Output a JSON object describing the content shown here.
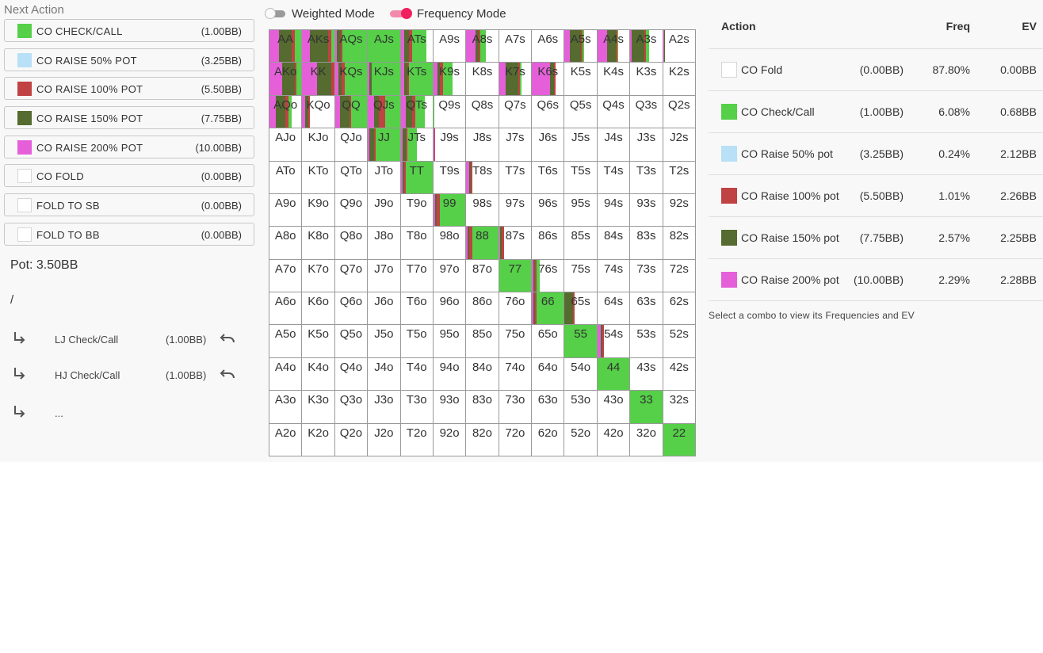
{
  "colors": {
    "check_call": "#55d048",
    "raise50": "#b8e0f6",
    "raise100": "#c04242",
    "raise150": "#556b2f",
    "raise200": "#e55fd9",
    "fold": "#ffffff",
    "toggle_on": "#f0447a",
    "toggle_off": "#9a9a9a"
  },
  "next_action": {
    "title": "Next Action",
    "buttons": [
      {
        "label": "CO CHECK/CALL",
        "amount": "(1.00BB)",
        "color": "#55d048"
      },
      {
        "label": "CO RAISE 50% POT",
        "amount": "(3.25BB)",
        "color": "#b8e0f6"
      },
      {
        "label": "CO RAISE 100% POT",
        "amount": "(5.50BB)",
        "color": "#c04242"
      },
      {
        "label": "CO RAISE 150% POT",
        "amount": "(7.75BB)",
        "color": "#556b2f"
      },
      {
        "label": "CO RAISE 200% POT",
        "amount": "(10.00BB)",
        "color": "#e55fd9"
      },
      {
        "label": "CO FOLD",
        "amount": "(0.00BB)",
        "color": "#ffffff"
      },
      {
        "label": "FOLD TO SB",
        "amount": "(0.00BB)",
        "color": "#ffffff"
      },
      {
        "label": "FOLD TO BB",
        "amount": "(0.00BB)",
        "color": "#ffffff"
      }
    ]
  },
  "pot": "Pot: 3.50BB",
  "path_root": "/",
  "history": [
    {
      "label": "LJ Check/Call",
      "amount": "(1.00BB)",
      "undo": true
    },
    {
      "label": "HJ Check/Call",
      "amount": "(1.00BB)",
      "undo": true
    },
    {
      "label": "...",
      "amount": "",
      "undo": false
    }
  ],
  "toggles": {
    "weighted": {
      "label": "Weighted Mode",
      "on": false
    },
    "frequency": {
      "label": "Frequency Mode",
      "on": true
    }
  },
  "grid": {
    "order": [
      "AA",
      "AKs",
      "AQs",
      "AJs",
      "ATs",
      "A9s",
      "A8s",
      "A7s",
      "A6s",
      "A5s",
      "A4s",
      "A3s",
      "A2s",
      "AKo",
      "KK",
      "KQs",
      "KJs",
      "KTs",
      "K9s",
      "K8s",
      "K7s",
      "K6s",
      "K5s",
      "K4s",
      "K3s",
      "K2s",
      "AQo",
      "KQo",
      "QQ",
      "QJs",
      "QTs",
      "Q9s",
      "Q8s",
      "Q7s",
      "Q6s",
      "Q5s",
      "Q4s",
      "Q3s",
      "Q2s",
      "AJo",
      "KJo",
      "QJo",
      "JJ",
      "JTs",
      "J9s",
      "J8s",
      "J7s",
      "J6s",
      "J5s",
      "J4s",
      "J3s",
      "J2s",
      "ATo",
      "KTo",
      "QTo",
      "JTo",
      "TT",
      "T9s",
      "T8s",
      "T7s",
      "T6s",
      "T5s",
      "T4s",
      "T3s",
      "T2s",
      "A9o",
      "K9o",
      "Q9o",
      "J9o",
      "T9o",
      "99",
      "98s",
      "97s",
      "96s",
      "95s",
      "94s",
      "93s",
      "92s",
      "A8o",
      "K8o",
      "Q8o",
      "J8o",
      "T8o",
      "98o",
      "88",
      "87s",
      "86s",
      "85s",
      "84s",
      "83s",
      "82s",
      "A7o",
      "K7o",
      "Q7o",
      "J7o",
      "T7o",
      "97o",
      "87o",
      "77",
      "76s",
      "75s",
      "74s",
      "73s",
      "72s",
      "A6o",
      "K6o",
      "Q6o",
      "J6o",
      "T6o",
      "96o",
      "86o",
      "76o",
      "66",
      "65s",
      "64s",
      "63s",
      "62s",
      "A5o",
      "K5o",
      "Q5o",
      "J5o",
      "T5o",
      "95o",
      "85o",
      "75o",
      "65o",
      "55",
      "54s",
      "53s",
      "52s",
      "A4o",
      "K4o",
      "Q4o",
      "J4o",
      "T4o",
      "94o",
      "84o",
      "74o",
      "64o",
      "54o",
      "44",
      "43s",
      "42s",
      "A3o",
      "K3o",
      "Q3o",
      "J3o",
      "T3o",
      "93o",
      "83o",
      "73o",
      "63o",
      "53o",
      "43o",
      "33",
      "32s",
      "A2o",
      "K2o",
      "Q2o",
      "J2o",
      "T2o",
      "92o",
      "82o",
      "72o",
      "62o",
      "52o",
      "42o",
      "32o",
      "22"
    ],
    "freqs": {
      "AA": {
        "raise200": 0.3,
        "raise150": 0.4,
        "raise100": 0.1,
        "check_call": 0.2
      },
      "AKs": {
        "raise200": 0.25,
        "raise150": 0.55,
        "raise100": 0.1,
        "check_call": 0.1
      },
      "AQs": {
        "raise200": 0.05,
        "raise150": 0.12,
        "raise100": 0.05,
        "check_call": 0.78
      },
      "AJs": {
        "check_call": 1.0
      },
      "ATs": {
        "raise200": 0.12,
        "raise150": 0.15,
        "raise100": 0.08,
        "check_call": 0.45,
        "fold": 0.2
      },
      "A8s": {
        "raise200": 0.28,
        "raise150": 0.12,
        "raise100": 0.05,
        "check_call": 0.15,
        "fold": 0.4
      },
      "A5s": {
        "raise200": 0.15,
        "raise150": 0.35,
        "raise100": 0.05,
        "check_call": 0.05,
        "fold": 0.4
      },
      "A4s": {
        "raise200": 0.3,
        "raise150": 0.28,
        "raise100": 0.05,
        "check_call": 0.02,
        "fold": 0.35
      },
      "A3s": {
        "raise200": 0.05,
        "raise150": 0.4,
        "raise100": 0.05,
        "check_call": 0.1,
        "fold": 0.4
      },
      "A2s": {
        "raise200": 0.03,
        "raise150": 0.04,
        "fold": 0.93
      },
      "AKo": {
        "raise200": 0.4,
        "raise150": 0.4,
        "raise100": 0.05,
        "check_call": 0.15
      },
      "KK": {
        "raise200": 0.45,
        "raise150": 0.45,
        "raise100": 0.1
      },
      "KQs": {
        "raise200": 0.1,
        "raise150": 0.1,
        "raise100": 0.1,
        "check_call": 0.7
      },
      "KJs": {
        "raise200": 0.05,
        "raise150": 0.07,
        "check_call": 0.88
      },
      "KTs": {
        "raise200": 0.1,
        "raise150": 0.1,
        "raise100": 0.05,
        "check_call": 0.75
      },
      "K9s": {
        "raise200": 0.12,
        "raise150": 0.08,
        "raise100": 0.1,
        "check_call": 0.3,
        "fold": 0.4
      },
      "K7s": {
        "raise200": 0.2,
        "raise150": 0.4,
        "raise100": 0.05,
        "check_call": 0.05,
        "fold": 0.3
      },
      "K6s": {
        "raise200": 0.58,
        "raise150": 0.12,
        "raise100": 0.05,
        "fold": 0.25
      },
      "AQo": {
        "raise200": 0.2,
        "raise150": 0.3,
        "raise100": 0.1,
        "check_call": 0.1,
        "fold": 0.3
      },
      "KQo": {
        "raise200": 0.1,
        "raise150": 0.1,
        "raise100": 0.05,
        "fold": 0.75
      },
      "QQ": {
        "raise200": 0.15,
        "raise150": 0.3,
        "raise100": 0.05,
        "check_call": 0.5
      },
      "QJs": {
        "raise200": 0.2,
        "raise150": 0.15,
        "raise100": 0.2,
        "check_call": 0.45
      },
      "QTs": {
        "raise200": 0.15,
        "raise150": 0.2,
        "raise100": 0.1,
        "check_call": 0.3,
        "fold": 0.25
      },
      "Q9s": {
        "check_call": 0.02,
        "fold": 0.98
      },
      "JJ": {
        "raise200": 0.05,
        "raise150": 0.15,
        "raise100": 0.05,
        "check_call": 0.75
      },
      "JTs": {
        "raise200": 0.05,
        "raise150": 0.1,
        "raise100": 0.05,
        "check_call": 0.3,
        "fold": 0.5
      },
      "J9s": {
        "raise200": 0.03,
        "raise100": 0.03,
        "fold": 0.94
      },
      "TT": {
        "raise200": 0.07,
        "raise150": 0.05,
        "raise100": 0.05,
        "check_call": 0.83
      },
      "T8s": {
        "raise200": 0.1,
        "raise150": 0.05,
        "raise100": 0.05,
        "fold": 0.8
      },
      "99": {
        "raise200": 0.05,
        "raise150": 0.05,
        "raise100": 0.1,
        "check_call": 0.8
      },
      "88": {
        "raise200": 0.05,
        "raise150": 0.05,
        "raise100": 0.1,
        "check_call": 0.8
      },
      "87s": {
        "raise200": 0.03,
        "raise150": 0.05,
        "raise100": 0.07,
        "fold": 0.85
      },
      "77": {
        "check_call": 1.0
      },
      "76s": {
        "raise200": 0.05,
        "raise150": 0.05,
        "raise100": 0.05,
        "check_call": 0.1,
        "fold": 0.75
      },
      "66": {
        "raise200": 0.05,
        "raise150": 0.05,
        "raise100": 0.05,
        "check_call": 0.85
      },
      "65s": {
        "raise150": 0.25,
        "raise100": 0.05,
        "fold": 0.7
      },
      "55": {
        "check_call": 1.0
      },
      "54s": {
        "raise200": 0.1,
        "raise150": 0.05,
        "raise100": 0.05,
        "fold": 0.8
      },
      "44": {
        "check_call": 1.0
      },
      "33": {
        "check_call": 1.0
      },
      "22": {
        "check_call": 1.0
      }
    }
  },
  "stats": {
    "headers": {
      "action": "Action",
      "freq": "Freq",
      "ev": "EV"
    },
    "rows": [
      {
        "label": "CO Fold",
        "amount": "(0.00BB)",
        "freq": "87.80%",
        "ev": "0.00BB",
        "color": "#ffffff"
      },
      {
        "label": "CO Check/Call",
        "amount": "(1.00BB)",
        "freq": "6.08%",
        "ev": "0.68BB",
        "color": "#55d048"
      },
      {
        "label": "CO Raise 50% pot",
        "amount": "(3.25BB)",
        "freq": "0.24%",
        "ev": "2.12BB",
        "color": "#b8e0f6"
      },
      {
        "label": "CO Raise 100% pot",
        "amount": "(5.50BB)",
        "freq": "1.01%",
        "ev": "2.26BB",
        "color": "#c04242"
      },
      {
        "label": "CO Raise 150% pot",
        "amount": "(7.75BB)",
        "freq": "2.57%",
        "ev": "2.25BB",
        "color": "#556b2f"
      },
      {
        "label": "CO Raise 200% pot",
        "amount": "(10.00BB)",
        "freq": "2.29%",
        "ev": "2.28BB",
        "color": "#e55fd9"
      }
    ],
    "hint": "Select a combo to view its Frequencies and EV"
  }
}
